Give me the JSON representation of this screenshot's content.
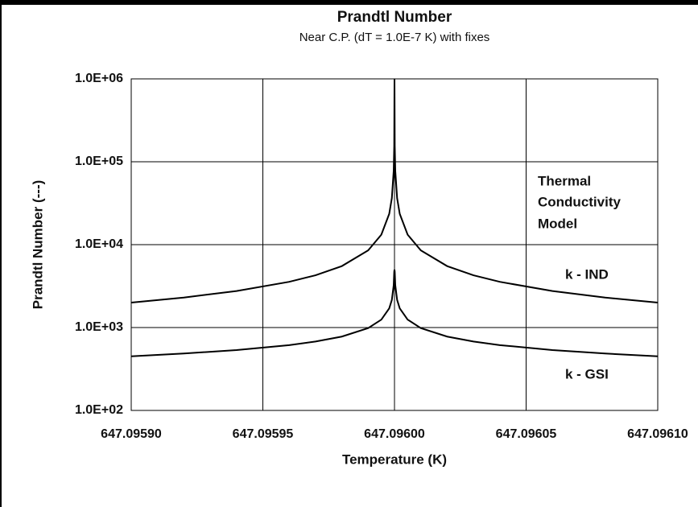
{
  "chart_data": {
    "type": "line",
    "title": "Prandtl Number",
    "subtitle": "Near C.P. (dT = 1.0E-7 K) with fixes",
    "xlabel": "Temperature (K)",
    "ylabel": "Prandtl Number (---)",
    "legend_title": [
      "Thermal",
      "Conductivity",
      "Model"
    ],
    "log_y": true,
    "grid": true,
    "xlim": [
      647.0959,
      647.0961
    ],
    "xticks": [
      {
        "value": 647.0959,
        "label": "647.09590"
      },
      647.09595,
      {
        "value": 647.096,
        "label": "647.09600"
      },
      647.09605,
      {
        "value": 647.0961,
        "label": "647.09610"
      }
    ],
    "ylim": [
      100,
      1000000
    ],
    "yticks": [
      {
        "value": 100,
        "label": "1.0E+02"
      },
      {
        "value": 1000,
        "label": "1.0E+03"
      },
      {
        "value": 10000,
        "label": "1.0E+04"
      },
      {
        "value": 100000,
        "label": "1.0E+05"
      },
      {
        "value": 1000000,
        "label": "1.0E+06"
      }
    ],
    "x": [
      647.0959,
      647.09592,
      647.09594,
      647.09596,
      647.09597,
      647.09598,
      647.09599,
      647.095995,
      647.095998,
      647.095999,
      647.0959997,
      647.0959999,
      647.096,
      647.0960001,
      647.0960003,
      647.096001,
      647.096002,
      647.096005,
      647.09601,
      647.09602,
      647.09603,
      647.09604,
      647.09606,
      647.09608,
      647.0961
    ],
    "series": [
      {
        "name": "k - IND",
        "color": "#000000",
        "values": [
          2000,
          2300,
          2760,
          3560,
          4270,
          5510,
          8530,
          13200,
          23500,
          36400,
          77800,
          155000,
          1000000,
          155000,
          77800,
          36400,
          23500,
          13200,
          8530,
          5510,
          4270,
          3560,
          2760,
          2300,
          2000
        ]
      },
      {
        "name": "k - GSI",
        "color": "#000000",
        "values": [
          450,
          486,
          535,
          614,
          678,
          778,
          985,
          1246,
          1702,
          2155,
          3244,
          4712,
          5000,
          4712,
          3244,
          2155,
          1702,
          1246,
          985,
          778,
          678,
          614,
          535,
          486,
          450
        ]
      }
    ]
  }
}
